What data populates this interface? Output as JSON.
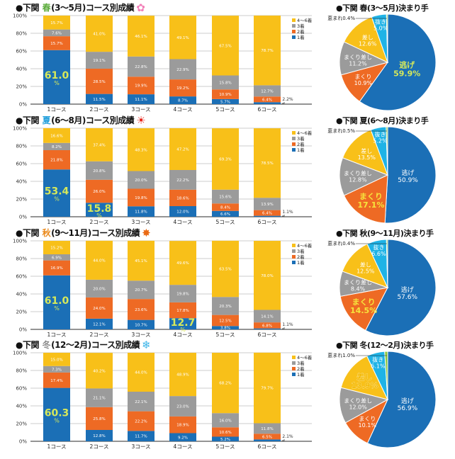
{
  "colors": {
    "first": "#1b6fb6",
    "second": "#ee6a24",
    "third": "#9b9b9b",
    "rest": "#f8c019",
    "nuki": "#1fb3e6",
    "megumare": "#8cc63f",
    "highlight": "#d6e85a",
    "grid": "#bdbdbd"
  },
  "legend": [
    "4～6着",
    "3着",
    "2着",
    "1着"
  ],
  "y_ticks": [
    "0%",
    "20%",
    "40%",
    "60%",
    "80%",
    "100%"
  ],
  "courses": [
    "1コース",
    "2コース",
    "3コース",
    "4コース",
    "5コース",
    "6コース"
  ],
  "chart_data": [
    {
      "type": "bar",
      "stacked": true,
      "title_prefix": "●下関",
      "season": "春",
      "season_color": "#5aab3a",
      "title_suffix": "(3～5月)コース別成績",
      "icon": "sakura-icon",
      "icon_glyph": "✿",
      "icon_color": "#f27fb8",
      "ylim": [
        0,
        100
      ],
      "series_order": [
        "1着",
        "2着",
        "3着",
        "4～6着"
      ],
      "values": [
        [
          61.0,
          15.7,
          7.6,
          15.7
        ],
        [
          11.5,
          28.5,
          19.1,
          41.0
        ],
        [
          11.1,
          19.9,
          22.8,
          46.1
        ],
        [
          8.7,
          19.2,
          22.9,
          49.1
        ],
        [
          5.7,
          10.9,
          15.8,
          67.5
        ],
        [
          2.2,
          6.4,
          12.7,
          78.7
        ]
      ],
      "highlight_first": [
        0
      ]
    },
    {
      "type": "pie",
      "title_prefix": "●下関",
      "season": "春",
      "title_suffix": "(3～5月)決まり手",
      "slices": [
        {
          "label": "逃げ",
          "value": 59.9,
          "color": "first",
          "highlight": true
        },
        {
          "label": "まくり",
          "value": 10.9,
          "color": "second"
        },
        {
          "label": "まくり差し",
          "value": 11.2,
          "color": "third"
        },
        {
          "label": "差し",
          "value": 12.6,
          "color": "rest"
        },
        {
          "label": "抜き",
          "value": 5.0,
          "color": "nuki"
        },
        {
          "label": "恵まれ",
          "value": 0.4,
          "color": "megumare"
        }
      ]
    },
    {
      "type": "bar",
      "stacked": true,
      "title_prefix": "●下関",
      "season": "夏",
      "season_color": "#23a0dc",
      "title_suffix": "(6～8月)コース別成績",
      "icon": "sun-icon",
      "icon_glyph": "☀",
      "icon_color": "#e8261c",
      "ylim": [
        0,
        100
      ],
      "series_order": [
        "1着",
        "2着",
        "3着",
        "4～6着"
      ],
      "values": [
        [
          53.4,
          21.8,
          8.2,
          16.6
        ],
        [
          15.8,
          26.0,
          20.8,
          37.4
        ],
        [
          11.8,
          19.8,
          20.0,
          48.3
        ],
        [
          12.0,
          18.6,
          22.2,
          47.2
        ],
        [
          6.6,
          8.4,
          15.6,
          69.3
        ],
        [
          1.1,
          6.4,
          13.9,
          78.5
        ]
      ],
      "highlight_first": [
        0,
        1
      ]
    },
    {
      "type": "pie",
      "title_prefix": "●下関",
      "season": "夏",
      "title_suffix": "(6～8月)決まり手",
      "slices": [
        {
          "label": "逃げ",
          "value": 50.9,
          "color": "first"
        },
        {
          "label": "まくり",
          "value": 17.1,
          "color": "second",
          "highlight": true
        },
        {
          "label": "まくり差し",
          "value": 12.8,
          "color": "third"
        },
        {
          "label": "差し",
          "value": 13.5,
          "color": "rest"
        },
        {
          "label": "抜き",
          "value": 5.2,
          "color": "nuki"
        },
        {
          "label": "恵まれ",
          "value": 0.5,
          "color": "megumare"
        }
      ]
    },
    {
      "type": "bar",
      "stacked": true,
      "title_prefix": "●下関",
      "season": "秋",
      "season_color": "#e9891b",
      "title_suffix": "(9～11月)コース別成績",
      "icon": "maple-leaf-icon",
      "icon_glyph": "✸",
      "icon_color": "#ea6a14",
      "ylim": [
        0,
        100
      ],
      "series_order": [
        "1着",
        "2着",
        "3着",
        "4～6着"
      ],
      "values": [
        [
          61.0,
          16.9,
          6.9,
          15.2
        ],
        [
          12.1,
          24.0,
          20.0,
          44.0
        ],
        [
          10.7,
          23.6,
          20.7,
          45.1
        ],
        [
          12.7,
          17.8,
          19.8,
          49.6
        ],
        [
          3.8,
          12.5,
          20.3,
          63.5
        ],
        [
          1.1,
          6.8,
          14.1,
          78.0
        ]
      ],
      "highlight_first": [
        0,
        3
      ]
    },
    {
      "type": "pie",
      "title_prefix": "●下関",
      "season": "秋",
      "title_suffix": "(9～11月)決まり手",
      "slices": [
        {
          "label": "逃げ",
          "value": 57.6,
          "color": "first"
        },
        {
          "label": "まくり",
          "value": 14.5,
          "color": "second",
          "highlight": true
        },
        {
          "label": "まくり差し",
          "value": 8.4,
          "color": "third"
        },
        {
          "label": "差し",
          "value": 12.5,
          "color": "rest"
        },
        {
          "label": "抜き",
          "value": 6.6,
          "color": "nuki"
        },
        {
          "label": "恵まれ",
          "value": 0.4,
          "color": "megumare"
        }
      ]
    },
    {
      "type": "bar",
      "stacked": true,
      "title_prefix": "●下関",
      "season": "冬",
      "season_color": "#8a8a8a",
      "title_suffix": "(12～2月)コース別成績",
      "icon": "snowflake-icon",
      "icon_glyph": "❄",
      "icon_color": "#3bb4e8",
      "ylim": [
        0,
        100
      ],
      "series_order": [
        "1着",
        "2着",
        "3着",
        "4～6着"
      ],
      "values": [
        [
          60.3,
          17.4,
          7.3,
          15.0
        ],
        [
          12.8,
          25.8,
          21.1,
          40.2
        ],
        [
          11.7,
          22.2,
          22.1,
          44.0
        ],
        [
          9.2,
          18.9,
          23.0,
          48.9
        ],
        [
          5.2,
          10.6,
          16.0,
          68.2
        ],
        [
          2.1,
          6.5,
          11.8,
          79.7
        ]
      ],
      "highlight_first": [
        0
      ]
    },
    {
      "type": "pie",
      "title_prefix": "●下関",
      "season": "冬",
      "title_suffix": "(12～2月)決まり手",
      "slices": [
        {
          "label": "逃げ",
          "value": 56.9,
          "color": "first"
        },
        {
          "label": "まくり",
          "value": 10.1,
          "color": "second"
        },
        {
          "label": "まくり差し",
          "value": 12.0,
          "color": "third"
        },
        {
          "label": "差し",
          "value": 13.9,
          "color": "rest",
          "highlight": true
        },
        {
          "label": "抜き",
          "value": 6.1,
          "color": "nuki"
        },
        {
          "label": "恵まれ",
          "value": 1.0,
          "color": "megumare"
        }
      ]
    }
  ]
}
